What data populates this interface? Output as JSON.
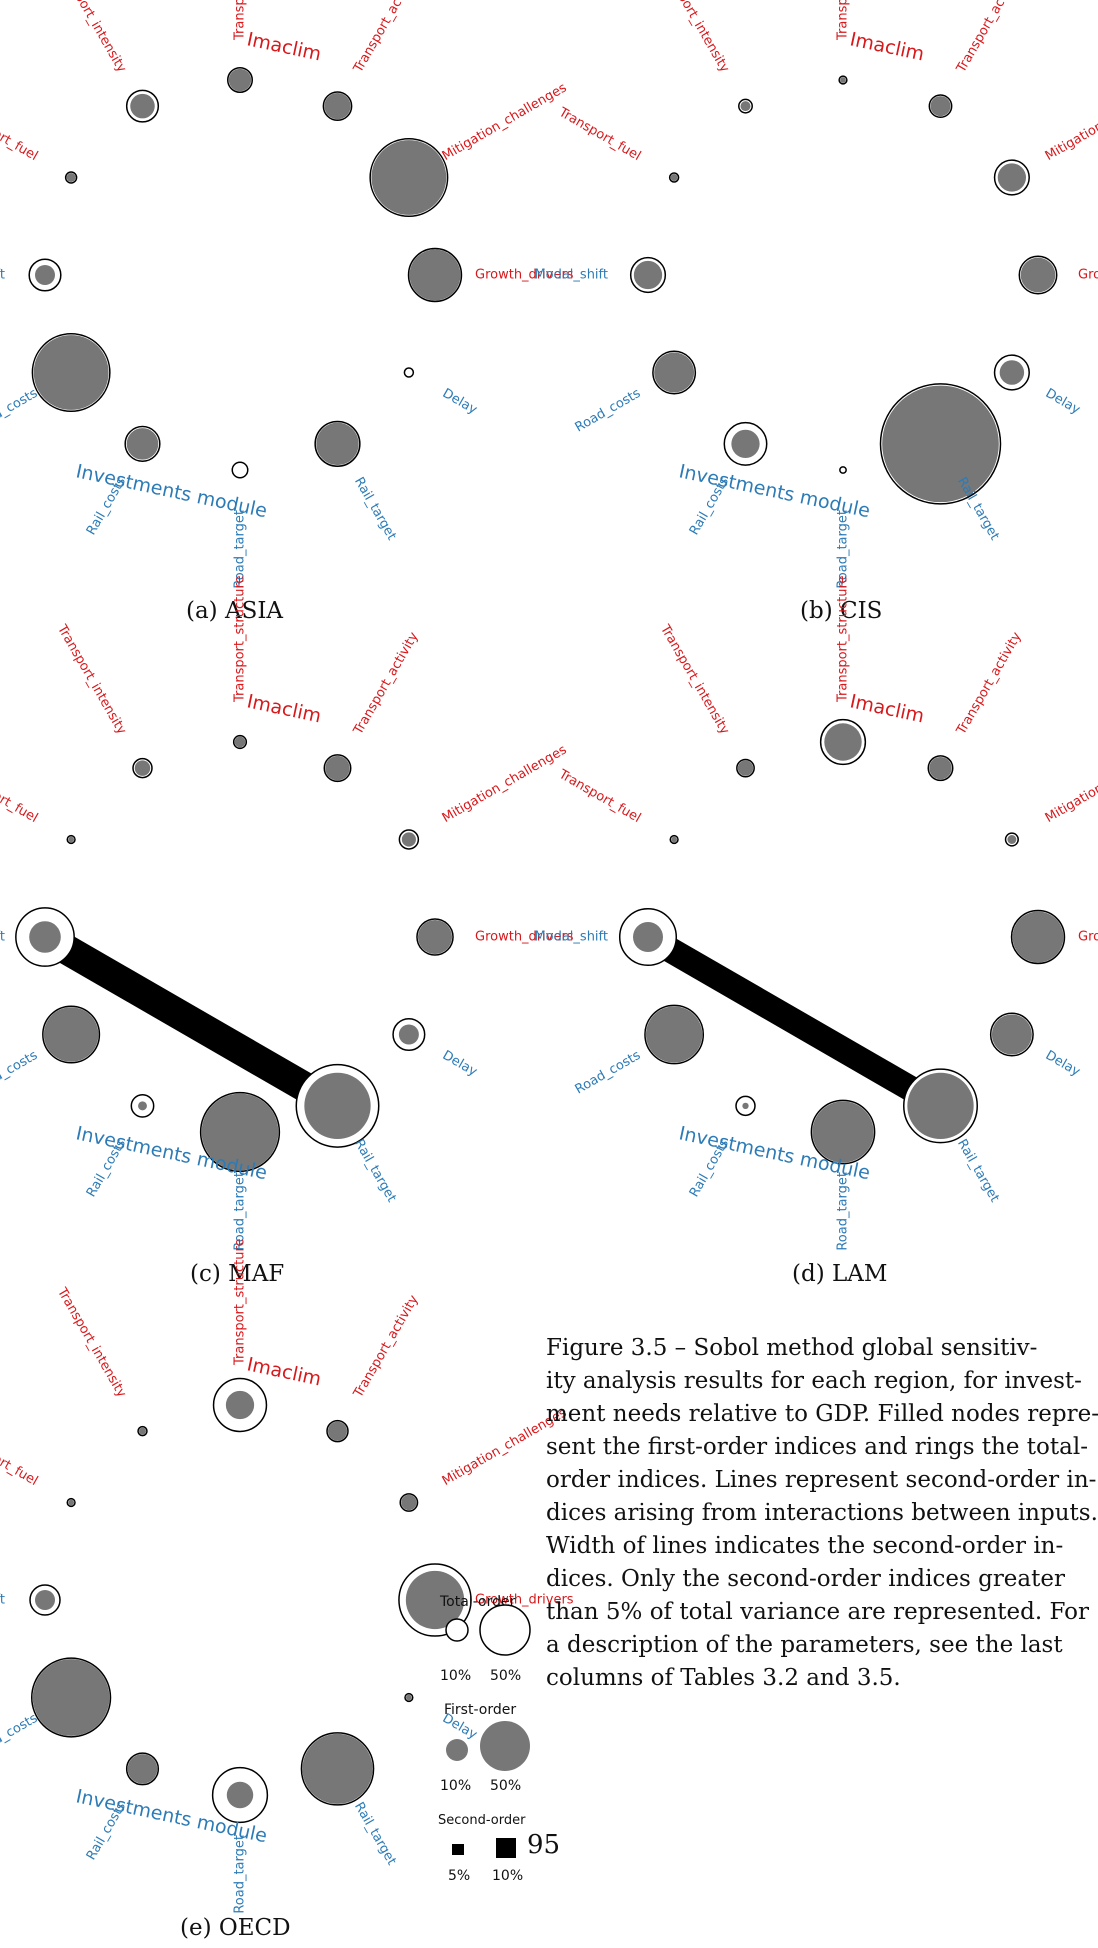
{
  "colors": {
    "imaclim": "#d7191c",
    "investments": "#2c7bb6",
    "node_fill": "#777777",
    "ring": "#000000",
    "line": "#000000"
  },
  "modules": {
    "imaclim": "Imaclim",
    "investments": "Investments module"
  },
  "variables": [
    {
      "key": "transport_structure",
      "label": "Transport_structure",
      "group": "imaclim"
    },
    {
      "key": "transport_activity",
      "label": "Transport_activity",
      "group": "imaclim"
    },
    {
      "key": "mitigation_challenges",
      "label": "Mitigation_challenges",
      "group": "imaclim"
    },
    {
      "key": "growth_drivers",
      "label": "Growth_drivers",
      "group": "imaclim"
    },
    {
      "key": "delay",
      "label": "Delay",
      "group": "investments"
    },
    {
      "key": "rail_target",
      "label": "Rail_target",
      "group": "investments"
    },
    {
      "key": "road_target",
      "label": "Road_target",
      "group": "investments"
    },
    {
      "key": "rail_costs",
      "label": "Rail_costs",
      "group": "investments"
    },
    {
      "key": "road_costs",
      "label": "Road_costs",
      "group": "investments"
    },
    {
      "key": "modal_shift",
      "label": "Modal_shift",
      "group": "investments"
    },
    {
      "key": "transport_fuel",
      "label": "Transport_fuel",
      "group": "imaclim"
    },
    {
      "key": "transport_intensity",
      "label": "Transport_intensity",
      "group": "imaclim"
    }
  ],
  "panels": [
    {
      "caption": "(a) ASIA",
      "first_order": {
        "transport_structure": 0.025,
        "transport_activity": 0.035,
        "mitigation_challenges": 0.28,
        "growth_drivers": 0.13,
        "delay": 0.0,
        "rail_target": 0.09,
        "road_target": 0.0,
        "rail_costs": 0.05,
        "road_costs": 0.28,
        "modal_shift": 0.02,
        "transport_fuel": 0.005,
        "transport_intensity": 0.03
      },
      "total_order": {
        "transport_structure": 0.03,
        "transport_activity": 0.04,
        "mitigation_challenges": 0.3,
        "growth_drivers": 0.14,
        "delay": 0.004,
        "rail_target": 0.1,
        "road_target": 0.012,
        "rail_costs": 0.06,
        "road_costs": 0.3,
        "modal_shift": 0.05,
        "transport_fuel": 0.006,
        "transport_intensity": 0.05
      },
      "second_order": []
    },
    {
      "caption": "(b) CIS",
      "first_order": {
        "transport_structure": 0.002,
        "transport_activity": 0.02,
        "mitigation_challenges": 0.04,
        "growth_drivers": 0.06,
        "delay": 0.03,
        "rail_target": 0.68,
        "road_target": 0.0,
        "rail_costs": 0.04,
        "road_costs": 0.08,
        "modal_shift": 0.04,
        "transport_fuel": 0.003,
        "transport_intensity": 0.005
      },
      "total_order": {
        "transport_structure": 0.003,
        "transport_activity": 0.025,
        "mitigation_challenges": 0.06,
        "growth_drivers": 0.07,
        "delay": 0.06,
        "rail_target": 0.72,
        "road_target": 0.002,
        "rail_costs": 0.09,
        "road_costs": 0.09,
        "modal_shift": 0.06,
        "transport_fuel": 0.004,
        "transport_intensity": 0.009
      },
      "second_order": []
    },
    {
      "caption": "(c) MAF",
      "first_order": {
        "transport_structure": 0.006,
        "transport_activity": 0.035,
        "mitigation_challenges": 0.01,
        "growth_drivers": 0.06,
        "delay": 0.02,
        "rail_target": 0.22,
        "road_target": 0.3,
        "rail_costs": 0.004,
        "road_costs": 0.15,
        "modal_shift": 0.05,
        "transport_fuel": 0.002,
        "transport_intensity": 0.012
      },
      "total_order": {
        "transport_structure": 0.008,
        "transport_activity": 0.035,
        "mitigation_challenges": 0.018,
        "growth_drivers": 0.065,
        "delay": 0.05,
        "rail_target": 0.34,
        "road_target": 0.31,
        "rail_costs": 0.025,
        "road_costs": 0.16,
        "modal_shift": 0.17,
        "transport_fuel": 0.003,
        "transport_intensity": 0.018
      },
      "second_order": [
        {
          "from": "modal_shift",
          "to": "rail_target",
          "value": 0.2
        }
      ]
    },
    {
      "caption": "(d) LAM",
      "first_order": {
        "transport_structure": 0.07,
        "transport_activity": 0.025,
        "mitigation_challenges": 0.004,
        "growth_drivers": 0.13,
        "delay": 0.08,
        "rail_target": 0.22,
        "road_target": 0.19,
        "rail_costs": 0.002,
        "road_costs": 0.16,
        "modal_shift": 0.045,
        "transport_fuel": 0.002,
        "transport_intensity": 0.012
      },
      "total_order": {
        "transport_structure": 0.1,
        "transport_activity": 0.03,
        "mitigation_challenges": 0.008,
        "growth_drivers": 0.14,
        "delay": 0.09,
        "rail_target": 0.27,
        "road_target": 0.2,
        "rail_costs": 0.018,
        "road_costs": 0.17,
        "modal_shift": 0.16,
        "transport_fuel": 0.003,
        "transport_intensity": 0.015
      },
      "second_order": [
        {
          "from": "modal_shift",
          "to": "rail_target",
          "value": 0.17
        }
      ]
    },
    {
      "caption": "(e) OECD",
      "first_order": {
        "transport_structure": 0.04,
        "transport_activity": 0.02,
        "mitigation_challenges": 0.012,
        "growth_drivers": 0.17,
        "delay": 0.002,
        "rail_target": 0.25,
        "road_target": 0.035,
        "rail_costs": 0.045,
        "road_costs": 0.3,
        "modal_shift": 0.02,
        "transport_fuel": 0.002,
        "transport_intensity": 0.003
      },
      "total_order": {
        "transport_structure": 0.14,
        "transport_activity": 0.022,
        "mitigation_challenges": 0.015,
        "growth_drivers": 0.26,
        "delay": 0.003,
        "rail_target": 0.26,
        "road_target": 0.15,
        "rail_costs": 0.05,
        "road_costs": 0.31,
        "modal_shift": 0.045,
        "transport_fuel": 0.003,
        "transport_intensity": 0.004
      },
      "second_order": []
    }
  ],
  "legend": {
    "total_title": "Total-order",
    "first_title": "First-order",
    "second_title": "Second-order",
    "total_ticks": [
      "10%",
      "50%"
    ],
    "first_ticks": [
      "10%",
      "50%"
    ],
    "second_ticks": [
      "5%",
      "10%"
    ]
  },
  "figure_caption_lines": [
    "Figure 3.5 – Sobol method global sensitiv-",
    "ity analysis results for each region, for invest-",
    "ment needs relative to GDP. Filled nodes repre-",
    "sent the first-order indices and rings the total-",
    "order indices. Lines represent second-order in-",
    "dices arising from interactions between inputs.",
    "Width of lines indicates the second-order in-",
    "dices. Only the second-order indices greater",
    "than 5% of total variance are represented. For",
    "a description of the parameters, see the last",
    "columns of Tables 3.2 and 3.5."
  ],
  "page_number": "95"
}
